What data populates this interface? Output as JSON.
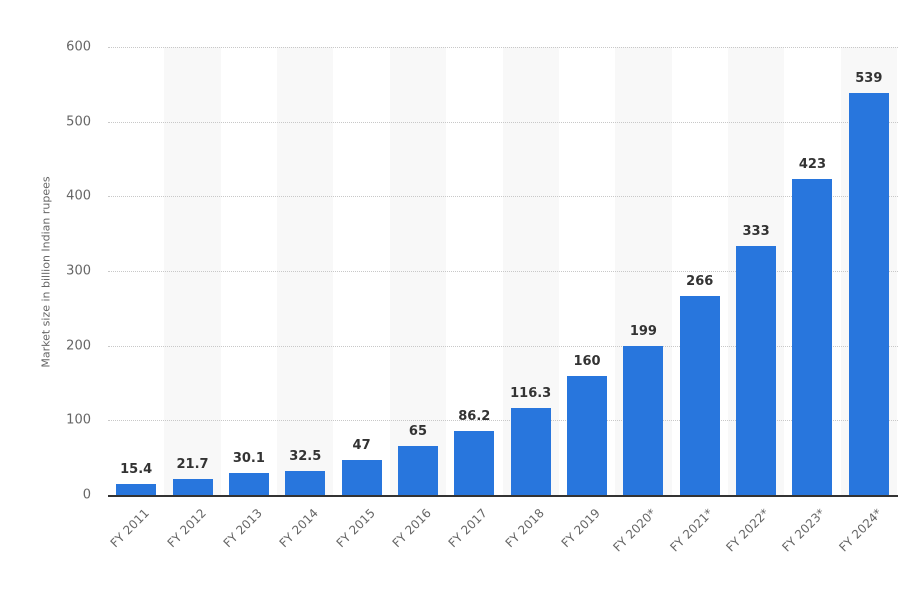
{
  "chart_data": {
    "type": "bar",
    "title": "",
    "xlabel": "",
    "ylabel": "Market size in billion Indian rupees",
    "categories": [
      "FY 2011",
      "FY 2012",
      "FY 2013",
      "FY 2014",
      "FY 2015",
      "FY 2016",
      "FY 2017",
      "FY 2018",
      "FY 2019",
      "FY 2020*",
      "FY 2021*",
      "FY 2022*",
      "FY 2023*",
      "FY 2024*"
    ],
    "values": [
      15.4,
      21.7,
      30.1,
      32.5,
      47,
      65,
      86.2,
      116.3,
      160,
      199,
      266,
      333,
      423,
      539
    ],
    "value_labels": [
      "15.4",
      "21.7",
      "30.1",
      "32.5",
      "47",
      "65",
      "86.2",
      "116.3",
      "160",
      "199",
      "266",
      "333",
      "423",
      "539"
    ],
    "ylim": [
      0,
      600
    ],
    "yticks": [
      0,
      100,
      200,
      300,
      400,
      500,
      600
    ],
    "grid": true,
    "legend": null,
    "bar_color": "#2876dd"
  }
}
